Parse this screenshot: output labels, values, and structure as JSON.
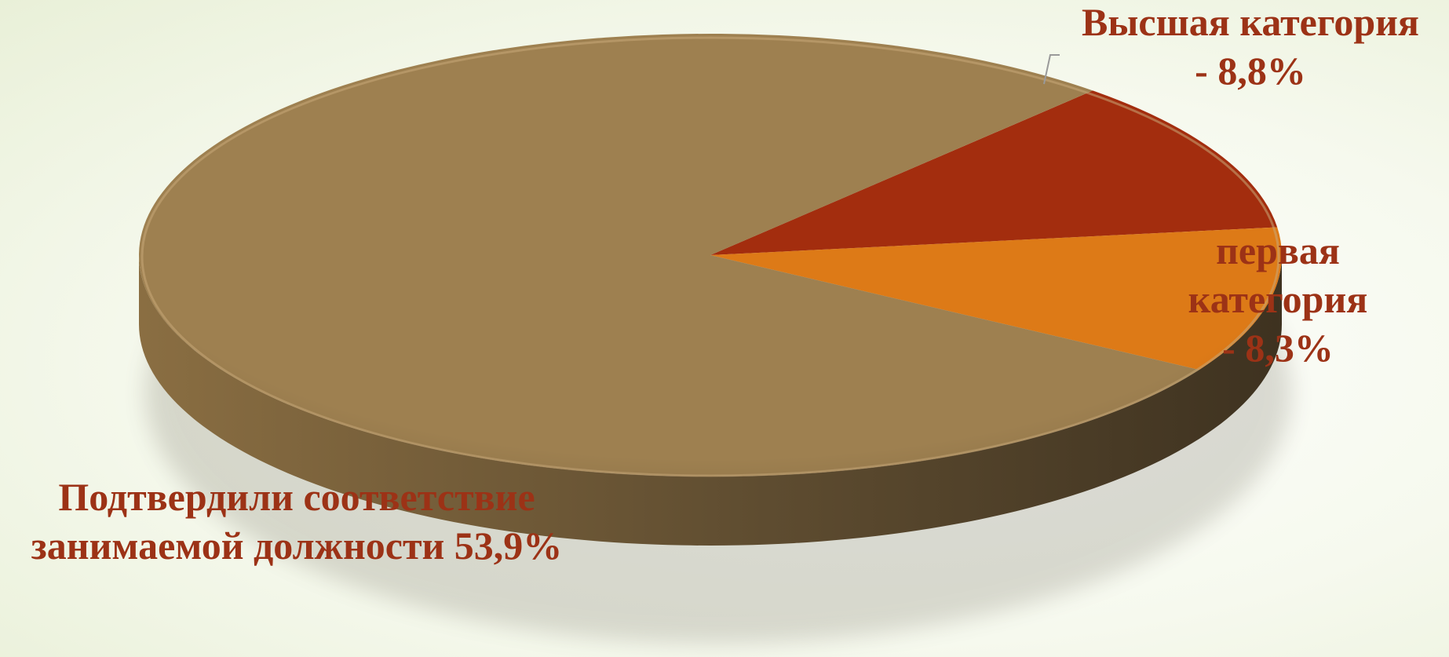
{
  "chart_data": {
    "type": "pie",
    "title": "",
    "slices": [
      {
        "label_lines": [
          "Высшая категория",
          "- 8,8%"
        ],
        "value": 8.8,
        "color": "#a32d0e"
      },
      {
        "label_lines": [
          "первая",
          "категория",
          "- 8,3%"
        ],
        "value": 8.3,
        "color": "#dd7a17"
      },
      {
        "label_lines": [
          "Подтвердили соответствие",
          "занимаемой должности 53,9%"
        ],
        "value": 53.9,
        "color": "#9e8050"
      }
    ],
    "label_color": "#9c3216",
    "side_color_light": "#8a6e42",
    "side_color_dark": "#3e3220",
    "legend": "none"
  }
}
